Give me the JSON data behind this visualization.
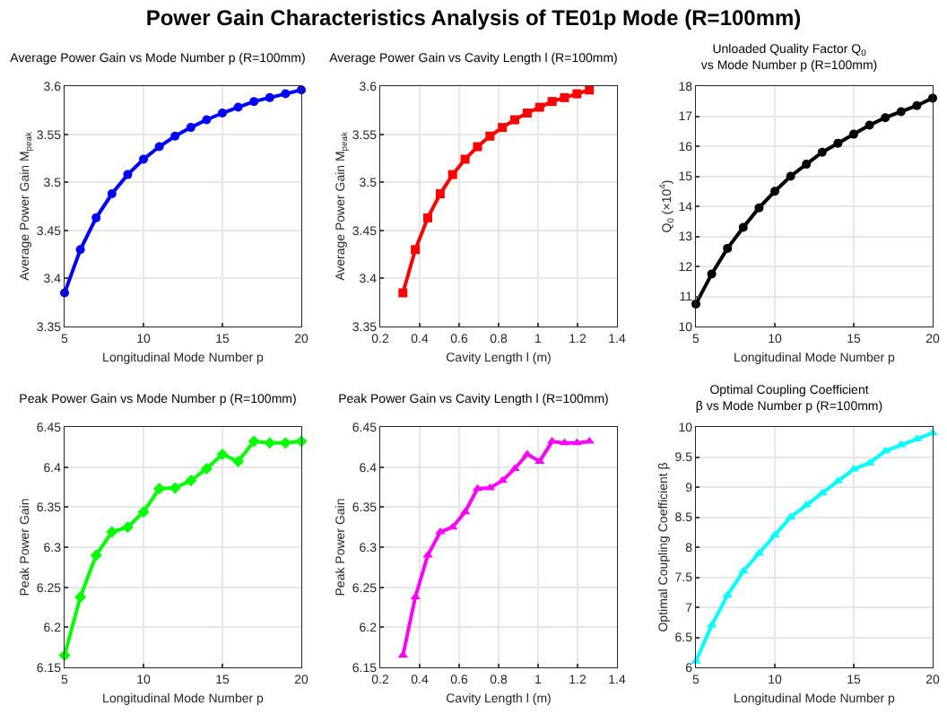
{
  "chart_data": [
    {
      "type": "other",
      "title": "Power Gain Characteristics Analysis of TE01p Mode (R=100mm)"
    },
    {
      "type": "line",
      "title": "Average Power Gain vs Mode Number p (R=100mm)",
      "xlabel": "Longitudinal Mode Number p",
      "ylabel": "Average Power Gain M$_{peak}$",
      "x": [
        5,
        6,
        7,
        8,
        9,
        10,
        11,
        12,
        13,
        14,
        15,
        16,
        17,
        18,
        19,
        20
      ],
      "series": [
        {
          "color": "#0000ff",
          "values": [
            3.385,
            3.43,
            3.463,
            3.488,
            3.508,
            3.524,
            3.537,
            3.548,
            3.557,
            3.565,
            3.572,
            3.578,
            3.584,
            3.588,
            3.592,
            3.596
          ]
        }
      ],
      "xlim": [
        5,
        20
      ],
      "xticks": [
        5,
        10,
        15,
        20
      ],
      "ylim": [
        3.35,
        3.6
      ],
      "yticks": [
        3.35,
        3.4,
        3.45,
        3.5,
        3.55,
        3.6
      ],
      "grid": true,
      "marker": "circle",
      "line_style": "solid"
    },
    {
      "type": "line",
      "title": "Average Power Gain vs Cavity Length l (R=100mm)",
      "xlabel": "Cavity Length l (m)",
      "ylabel": "Average Power Gain M$_{peak}$",
      "x": [
        0.315,
        0.378,
        0.441,
        0.504,
        0.567,
        0.63,
        0.693,
        0.756,
        0.819,
        0.882,
        0.945,
        1.008,
        1.071,
        1.134,
        1.197,
        1.26
      ],
      "series": [
        {
          "color": "#ff0000",
          "values": [
            3.385,
            3.43,
            3.463,
            3.488,
            3.508,
            3.524,
            3.537,
            3.548,
            3.557,
            3.565,
            3.572,
            3.578,
            3.584,
            3.588,
            3.592,
            3.596
          ]
        }
      ],
      "xlim": [
        0.2,
        1.4
      ],
      "xticks": [
        0.2,
        0.4,
        0.6,
        0.8,
        1,
        1.2,
        1.4
      ],
      "ylim": [
        3.35,
        3.6
      ],
      "yticks": [
        3.35,
        3.4,
        3.45,
        3.5,
        3.55,
        3.6
      ],
      "grid": true,
      "marker": "square",
      "line_style": "solid"
    },
    {
      "type": "line",
      "title": "Unloaded Quality Factor Q$_{0}$ vs Mode Number p (R=100mm)",
      "xlabel": "Longitudinal Mode Number p",
      "ylabel": "Q$_{0}$ (×10$^{4}$)",
      "x": [
        5,
        6,
        7,
        8,
        9,
        10,
        11,
        12,
        13,
        14,
        15,
        16,
        17,
        18,
        19,
        20
      ],
      "series": [
        {
          "color": "#000000",
          "values": [
            10.75,
            11.75,
            12.6,
            13.3,
            13.95,
            14.5,
            15.0,
            15.4,
            15.8,
            16.1,
            16.4,
            16.7,
            16.95,
            17.15,
            17.35,
            17.6
          ]
        }
      ],
      "xlim": [
        5,
        20
      ],
      "xticks": [
        5,
        10,
        15,
        20
      ],
      "ylim": [
        10,
        18
      ],
      "yticks": [
        10,
        11,
        12,
        13,
        14,
        15,
        16,
        17,
        18
      ],
      "grid": true,
      "marker": "circle",
      "line_style": "solid"
    },
    {
      "type": "line",
      "title": "Peak Power Gain vs Mode Number p (R=100mm)",
      "xlabel": "Longitudinal Mode Number p",
      "ylabel": "Peak Power Gain",
      "x": [
        5,
        6,
        7,
        8,
        9,
        10,
        11,
        12,
        13,
        14,
        15,
        16,
        17,
        18,
        19,
        20
      ],
      "series": [
        {
          "color": "#00ff00",
          "values": [
            6.165,
            6.238,
            6.29,
            6.319,
            6.325,
            6.344,
            6.373,
            6.374,
            6.383,
            6.398,
            6.416,
            6.407,
            6.432,
            6.43,
            6.43,
            6.432
          ]
        }
      ],
      "xlim": [
        5,
        20
      ],
      "xticks": [
        5,
        10,
        15,
        20
      ],
      "ylim": [
        6.15,
        6.45
      ],
      "yticks": [
        6.15,
        6.2,
        6.25,
        6.3,
        6.35,
        6.4,
        6.45
      ],
      "grid": true,
      "marker": "diamond",
      "line_style": "solid"
    },
    {
      "type": "line",
      "title": "Peak Power Gain vs Cavity Length l (R=100mm)",
      "xlabel": "Cavity Length l (m)",
      "ylabel": "Peak Power Gain",
      "x": [
        0.315,
        0.378,
        0.441,
        0.504,
        0.567,
        0.63,
        0.693,
        0.756,
        0.819,
        0.882,
        0.945,
        1.008,
        1.071,
        1.134,
        1.197,
        1.26
      ],
      "series": [
        {
          "color": "#ff00ff",
          "values": [
            6.165,
            6.238,
            6.29,
            6.319,
            6.325,
            6.344,
            6.373,
            6.374,
            6.383,
            6.398,
            6.416,
            6.407,
            6.432,
            6.43,
            6.43,
            6.432
          ]
        }
      ],
      "xlim": [
        0.2,
        1.4
      ],
      "xticks": [
        0.2,
        0.4,
        0.6,
        0.8,
        1,
        1.2,
        1.4
      ],
      "ylim": [
        6.15,
        6.45
      ],
      "yticks": [
        6.15,
        6.2,
        6.25,
        6.3,
        6.35,
        6.4,
        6.45
      ],
      "grid": true,
      "marker": "triangle",
      "line_style": "solid"
    },
    {
      "type": "line",
      "title": "Optimal Coupling Coefficient β vs Mode Number p (R=100mm)",
      "xlabel": "Longitudinal Mode Number p",
      "ylabel": "Optimal Coupling Coefficient β",
      "x": [
        5,
        6,
        7,
        8,
        9,
        10,
        11,
        12,
        13,
        14,
        15,
        16,
        17,
        18,
        19,
        20
      ],
      "series": [
        {
          "color": "#00ffff",
          "values": [
            6.1,
            6.7,
            7.2,
            7.6,
            7.9,
            8.2,
            8.5,
            8.7,
            8.9,
            9.1,
            9.3,
            9.4,
            9.6,
            9.7,
            9.8,
            9.9
          ]
        }
      ],
      "xlim": [
        5,
        20
      ],
      "xticks": [
        5,
        10,
        15,
        20
      ],
      "ylim": [
        6,
        10
      ],
      "yticks": [
        6,
        6.5,
        7,
        7.5,
        8,
        8.5,
        9,
        9.5,
        10
      ],
      "grid": true,
      "marker": "triangle",
      "line_style": "solid"
    }
  ]
}
